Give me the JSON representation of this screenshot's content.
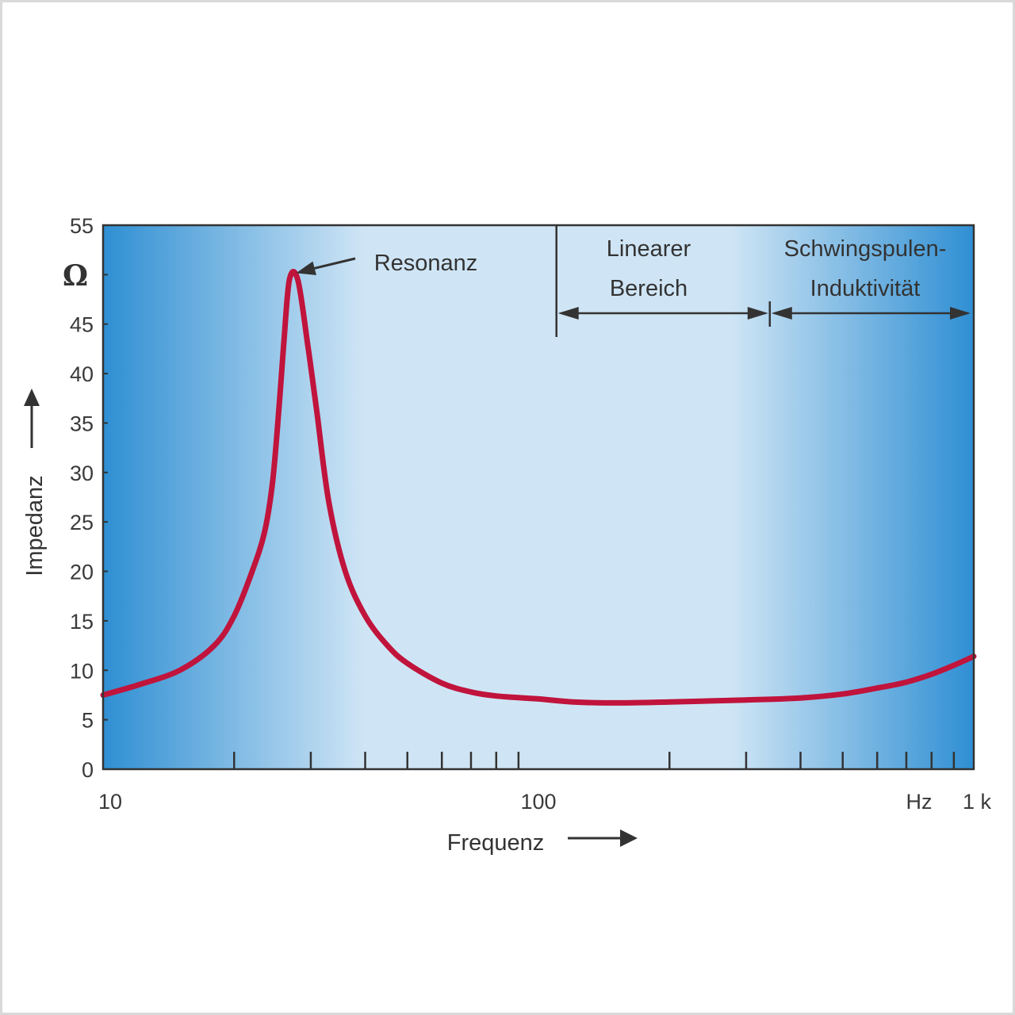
{
  "chart_data": {
    "type": "line",
    "xscale": "log",
    "xlim": [
      10,
      1000
    ],
    "ylim": [
      0,
      55
    ],
    "ylabel": "Impedanz",
    "xlabel": "Frequenz",
    "y_unit": "Ω",
    "x_unit": "Hz",
    "y_ticks": [
      {
        "value": 0,
        "label": "0"
      },
      {
        "value": 5,
        "label": "5"
      },
      {
        "value": 10,
        "label": "10"
      },
      {
        "value": 15,
        "label": "15"
      },
      {
        "value": 20,
        "label": "20"
      },
      {
        "value": 25,
        "label": "25"
      },
      {
        "value": 30,
        "label": "30"
      },
      {
        "value": 35,
        "label": "35"
      },
      {
        "value": 40,
        "label": "40"
      },
      {
        "value": 45,
        "label": "45"
      },
      {
        "value": 55,
        "label": "55"
      }
    ],
    "x_tick_labels": [
      {
        "value": 10,
        "label": "10"
      },
      {
        "value": 100,
        "label": "100"
      },
      {
        "value": 1000,
        "label": "1 k"
      }
    ],
    "x_minor_ticks": [
      20,
      30,
      40,
      50,
      60,
      70,
      80,
      90,
      200,
      300,
      400,
      500,
      600,
      700,
      800,
      900
    ],
    "series": [
      {
        "color": "#c0143c",
        "x": [
          10,
          12,
          15,
          18,
          20,
          22,
          23.5,
          24.5,
          25.3,
          26,
          26.8,
          28,
          29.5,
          31,
          33,
          36,
          40,
          45,
          50,
          60,
          70,
          80,
          100,
          120,
          150,
          200,
          300,
          400,
          500,
          600,
          700,
          800,
          900,
          1000
        ],
        "y": [
          7.5,
          8.5,
          10,
          12.5,
          15.5,
          20,
          24,
          29,
          36,
          43,
          49.5,
          49.5,
          43,
          36,
          27,
          20,
          15.5,
          12.5,
          10.7,
          8.7,
          7.8,
          7.4,
          7.1,
          6.8,
          6.7,
          6.8,
          7,
          7.2,
          7.6,
          8.2,
          8.8,
          9.6,
          10.5,
          11.4
        ]
      }
    ],
    "annotations": {
      "resonance_label": "Resonanz",
      "resonance_point": {
        "x": 27.3,
        "y": 50
      },
      "linear_region_line1": "Linearer",
      "linear_region_line2": "Bereich",
      "linear_region_range": [
        110,
        340
      ],
      "coil_region_line1": "Schwingspulen-",
      "coil_region_line2": "Induktivität",
      "coil_region_range": [
        340,
        1000
      ]
    },
    "colors": {
      "plot_edge_blue": "#2f8fd3",
      "plot_center_blue": "#cfe5f5",
      "curve": "#c0143c",
      "axis": "#333333"
    }
  }
}
